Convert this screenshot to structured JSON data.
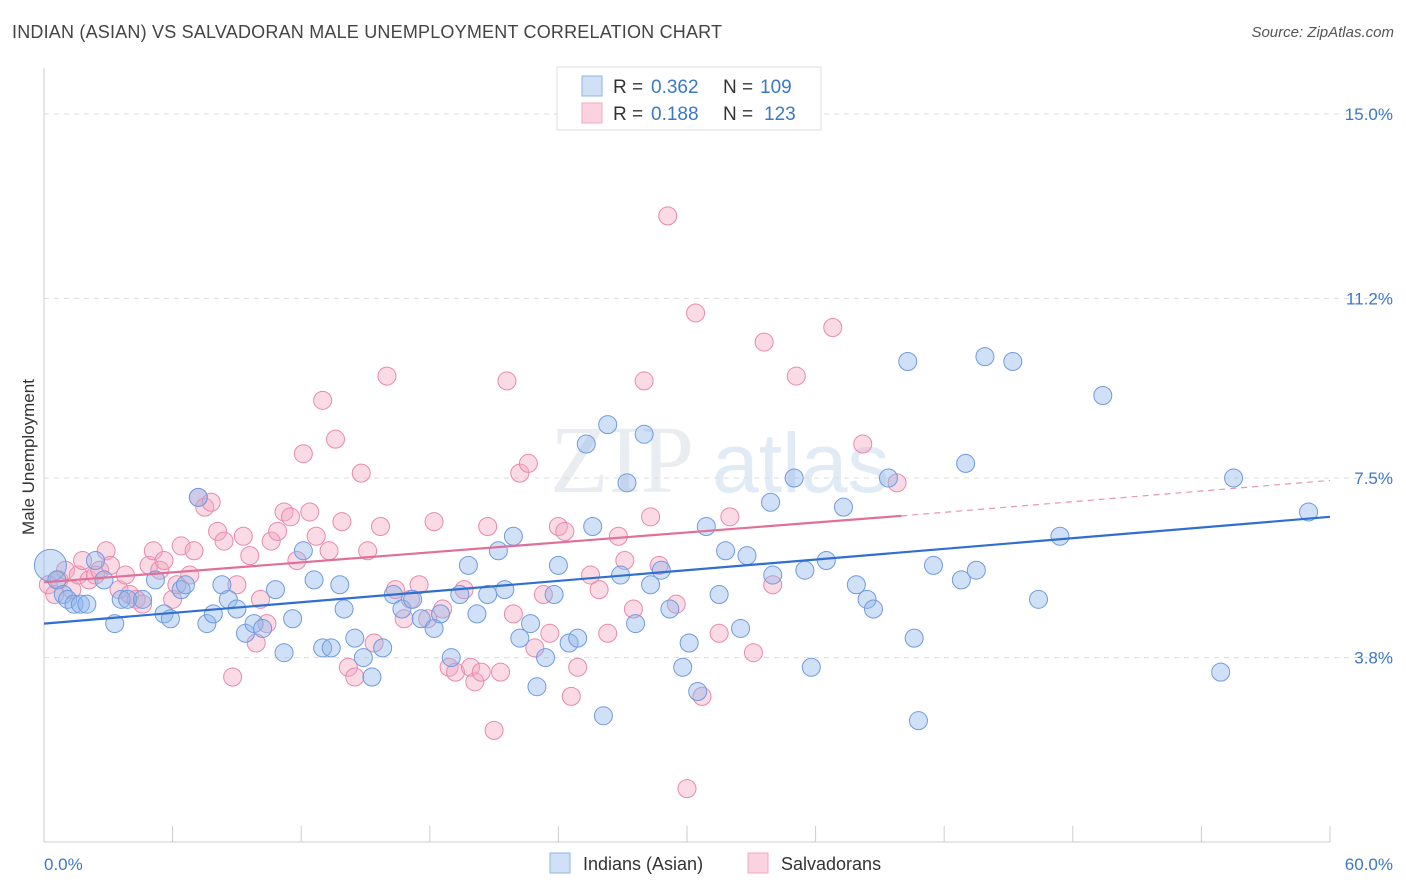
{
  "header": {
    "title": "INDIAN (ASIAN) VS SALVADORAN MALE UNEMPLOYMENT CORRELATION CHART",
    "source": "Source: ZipAtlas.com"
  },
  "watermark": {
    "part1": "ZIP",
    "part2": "atlas"
  },
  "legend": {
    "rows": [
      {
        "r_label": "R =",
        "r_value": "0.362",
        "n_label": "N =",
        "n_value": "109",
        "color": "#8fb4ea"
      },
      {
        "r_label": "R =",
        "r_value": "0.188",
        "n_label": "N =",
        "n_value": "123",
        "color": "#f3a9c2"
      }
    ]
  },
  "bottom_legend": {
    "items": [
      {
        "label": "Indians (Asian)",
        "color": "#8fb4ea"
      },
      {
        "label": "Salvadorans",
        "color": "#f3a9c2"
      }
    ]
  },
  "chart_data": {
    "type": "scatter",
    "title": "INDIAN (ASIAN) VS SALVADORAN MALE UNEMPLOYMENT CORRELATION CHART",
    "xlabel": "",
    "ylabel": "Male Unemployment",
    "xlim": [
      0,
      60
    ],
    "ylim": [
      0,
      15.7
    ],
    "x_tick_labels": [
      "0.0%",
      "60.0%"
    ],
    "y_ticks": [
      3.8,
      7.5,
      11.2,
      15.0
    ],
    "y_tick_labels": [
      "3.8%",
      "7.5%",
      "11.2%",
      "15.0%"
    ],
    "grid": "horizontal-dashed",
    "legend_position": "top-center",
    "series": [
      {
        "name": "Indians (Asian)",
        "color": "#8fb4ea",
        "stroke": "#6f9be0",
        "trend": {
          "x": [
            0,
            60
          ],
          "y": [
            4.5,
            6.7
          ],
          "color": "#2f6fd0",
          "dashed_from": null
        },
        "points": [
          [
            0.3,
            5.7
          ],
          [
            0.6,
            5.4
          ],
          [
            0.9,
            5.1
          ],
          [
            1.1,
            5.0
          ],
          [
            1.4,
            4.9
          ],
          [
            1.7,
            4.9
          ],
          [
            2.0,
            4.9
          ],
          [
            2.4,
            5.8
          ],
          [
            2.8,
            5.4
          ],
          [
            3.3,
            4.5
          ],
          [
            3.6,
            5.0
          ],
          [
            3.9,
            5.0
          ],
          [
            4.6,
            5.0
          ],
          [
            5.2,
            5.4
          ],
          [
            5.6,
            4.7
          ],
          [
            5.9,
            4.6
          ],
          [
            6.4,
            5.2
          ],
          [
            6.6,
            5.3
          ],
          [
            7.2,
            7.1
          ],
          [
            7.6,
            4.5
          ],
          [
            7.9,
            4.7
          ],
          [
            8.3,
            5.3
          ],
          [
            8.6,
            5.0
          ],
          [
            9.0,
            4.8
          ],
          [
            9.4,
            4.3
          ],
          [
            9.8,
            4.5
          ],
          [
            10.2,
            4.4
          ],
          [
            10.8,
            5.2
          ],
          [
            11.2,
            3.9
          ],
          [
            11.6,
            4.6
          ],
          [
            12.1,
            6.0
          ],
          [
            12.6,
            5.4
          ],
          [
            13.0,
            4.0
          ],
          [
            13.4,
            4.0
          ],
          [
            13.8,
            5.3
          ],
          [
            14.0,
            4.8
          ],
          [
            14.5,
            4.2
          ],
          [
            14.9,
            3.8
          ],
          [
            15.3,
            3.4
          ],
          [
            15.8,
            4.0
          ],
          [
            16.3,
            5.1
          ],
          [
            16.7,
            4.8
          ],
          [
            17.2,
            5.0
          ],
          [
            17.6,
            4.6
          ],
          [
            18.2,
            4.4
          ],
          [
            18.5,
            4.7
          ],
          [
            19.0,
            3.8
          ],
          [
            19.4,
            5.1
          ],
          [
            19.8,
            5.7
          ],
          [
            20.2,
            4.7
          ],
          [
            20.7,
            5.1
          ],
          [
            21.2,
            6.0
          ],
          [
            21.5,
            5.2
          ],
          [
            21.9,
            6.3
          ],
          [
            22.2,
            4.2
          ],
          [
            22.7,
            4.5
          ],
          [
            23.0,
            3.2
          ],
          [
            23.4,
            3.8
          ],
          [
            23.8,
            5.1
          ],
          [
            24.0,
            5.7
          ],
          [
            24.5,
            4.1
          ],
          [
            24.9,
            4.2
          ],
          [
            25.3,
            8.2
          ],
          [
            25.6,
            6.5
          ],
          [
            26.1,
            2.6
          ],
          [
            26.3,
            8.6
          ],
          [
            26.9,
            5.5
          ],
          [
            27.2,
            7.4
          ],
          [
            27.6,
            4.5
          ],
          [
            28.0,
            8.4
          ],
          [
            28.3,
            5.3
          ],
          [
            28.8,
            5.6
          ],
          [
            29.2,
            4.8
          ],
          [
            29.8,
            3.6
          ],
          [
            30.1,
            4.1
          ],
          [
            30.5,
            3.1
          ],
          [
            30.9,
            6.5
          ],
          [
            31.5,
            5.1
          ],
          [
            31.8,
            6.0
          ],
          [
            32.5,
            4.4
          ],
          [
            32.8,
            5.9
          ],
          [
            33.9,
            7.0
          ],
          [
            34.0,
            5.5
          ],
          [
            35.0,
            7.5
          ],
          [
            35.5,
            5.6
          ],
          [
            35.8,
            3.6
          ],
          [
            36.5,
            5.8
          ],
          [
            37.3,
            6.9
          ],
          [
            37.9,
            5.3
          ],
          [
            38.4,
            5.0
          ],
          [
            38.7,
            4.8
          ],
          [
            39.4,
            7.5
          ],
          [
            40.3,
            9.9
          ],
          [
            40.6,
            4.2
          ],
          [
            40.8,
            2.5
          ],
          [
            41.5,
            5.7
          ],
          [
            42.8,
            5.4
          ],
          [
            43.0,
            7.8
          ],
          [
            43.5,
            5.6
          ],
          [
            43.9,
            10.0
          ],
          [
            45.2,
            9.9
          ],
          [
            46.4,
            5.0
          ],
          [
            47.4,
            6.3
          ],
          [
            49.4,
            9.2
          ],
          [
            54.9,
            3.5
          ],
          [
            55.5,
            7.5
          ],
          [
            59.0,
            6.8
          ]
        ]
      },
      {
        "name": "Salvadorans",
        "color": "#f3a9c2",
        "stroke": "#ea89aa",
        "trend": {
          "x": [
            0,
            40
          ],
          "y": [
            5.35,
            6.72
          ],
          "color": "#e0709a",
          "dashed_to": [
            60,
            7.45
          ]
        },
        "points": [
          [
            0.2,
            5.3
          ],
          [
            0.5,
            5.1
          ],
          [
            0.7,
            5.4
          ],
          [
            1.0,
            5.6
          ],
          [
            1.3,
            5.2
          ],
          [
            1.6,
            5.5
          ],
          [
            1.8,
            5.8
          ],
          [
            2.1,
            5.4
          ],
          [
            2.4,
            5.5
          ],
          [
            2.6,
            5.6
          ],
          [
            2.9,
            6.0
          ],
          [
            3.1,
            5.7
          ],
          [
            3.5,
            5.2
          ],
          [
            3.8,
            5.5
          ],
          [
            4.0,
            5.1
          ],
          [
            4.3,
            5.0
          ],
          [
            4.6,
            4.9
          ],
          [
            4.9,
            5.7
          ],
          [
            5.1,
            6.0
          ],
          [
            5.4,
            5.6
          ],
          [
            5.6,
            5.8
          ],
          [
            6.0,
            5.0
          ],
          [
            6.2,
            5.3
          ],
          [
            6.4,
            6.1
          ],
          [
            6.8,
            5.5
          ],
          [
            7.0,
            6.0
          ],
          [
            7.2,
            7.1
          ],
          [
            7.5,
            6.9
          ],
          [
            7.8,
            7.0
          ],
          [
            8.1,
            6.4
          ],
          [
            8.4,
            6.2
          ],
          [
            8.8,
            3.4
          ],
          [
            9.0,
            5.3
          ],
          [
            9.3,
            6.3
          ],
          [
            9.6,
            5.9
          ],
          [
            9.9,
            4.1
          ],
          [
            10.1,
            5.0
          ],
          [
            10.4,
            4.5
          ],
          [
            10.6,
            6.2
          ],
          [
            10.9,
            6.4
          ],
          [
            11.2,
            6.8
          ],
          [
            11.5,
            6.7
          ],
          [
            11.8,
            5.8
          ],
          [
            12.1,
            8.0
          ],
          [
            12.4,
            6.8
          ],
          [
            12.7,
            6.3
          ],
          [
            13.0,
            9.1
          ],
          [
            13.3,
            6.0
          ],
          [
            13.6,
            8.3
          ],
          [
            13.9,
            6.6
          ],
          [
            14.2,
            3.6
          ],
          [
            14.5,
            3.4
          ],
          [
            14.8,
            7.6
          ],
          [
            15.1,
            6.0
          ],
          [
            15.4,
            4.1
          ],
          [
            15.7,
            6.5
          ],
          [
            16.0,
            9.6
          ],
          [
            16.4,
            5.2
          ],
          [
            16.8,
            4.6
          ],
          [
            17.1,
            5.0
          ],
          [
            17.5,
            5.3
          ],
          [
            17.9,
            4.6
          ],
          [
            18.2,
            6.6
          ],
          [
            18.6,
            4.8
          ],
          [
            18.9,
            3.6
          ],
          [
            19.2,
            3.5
          ],
          [
            19.6,
            5.2
          ],
          [
            19.9,
            3.6
          ],
          [
            20.1,
            3.3
          ],
          [
            20.4,
            3.5
          ],
          [
            20.7,
            6.5
          ],
          [
            21.0,
            2.3
          ],
          [
            21.3,
            3.5
          ],
          [
            21.6,
            9.5
          ],
          [
            21.9,
            4.7
          ],
          [
            22.2,
            7.6
          ],
          [
            22.6,
            7.8
          ],
          [
            22.9,
            4.0
          ],
          [
            23.3,
            5.1
          ],
          [
            23.6,
            4.3
          ],
          [
            24.0,
            6.5
          ],
          [
            24.3,
            6.4
          ],
          [
            24.6,
            3.0
          ],
          [
            24.9,
            3.6
          ],
          [
            25.5,
            5.5
          ],
          [
            25.9,
            5.2
          ],
          [
            26.3,
            4.3
          ],
          [
            26.8,
            6.3
          ],
          [
            27.1,
            5.8
          ],
          [
            27.5,
            4.8
          ],
          [
            28.0,
            9.5
          ],
          [
            28.3,
            6.7
          ],
          [
            28.7,
            5.7
          ],
          [
            29.1,
            12.9
          ],
          [
            29.5,
            4.9
          ],
          [
            30.0,
            1.1
          ],
          [
            30.4,
            10.9
          ],
          [
            30.7,
            3.0
          ],
          [
            31.5,
            4.3
          ],
          [
            32.0,
            6.7
          ],
          [
            33.1,
            3.9
          ],
          [
            33.6,
            10.3
          ],
          [
            34.0,
            5.3
          ],
          [
            35.1,
            9.6
          ],
          [
            36.8,
            10.6
          ],
          [
            38.2,
            8.2
          ],
          [
            39.8,
            7.4
          ]
        ]
      }
    ]
  }
}
